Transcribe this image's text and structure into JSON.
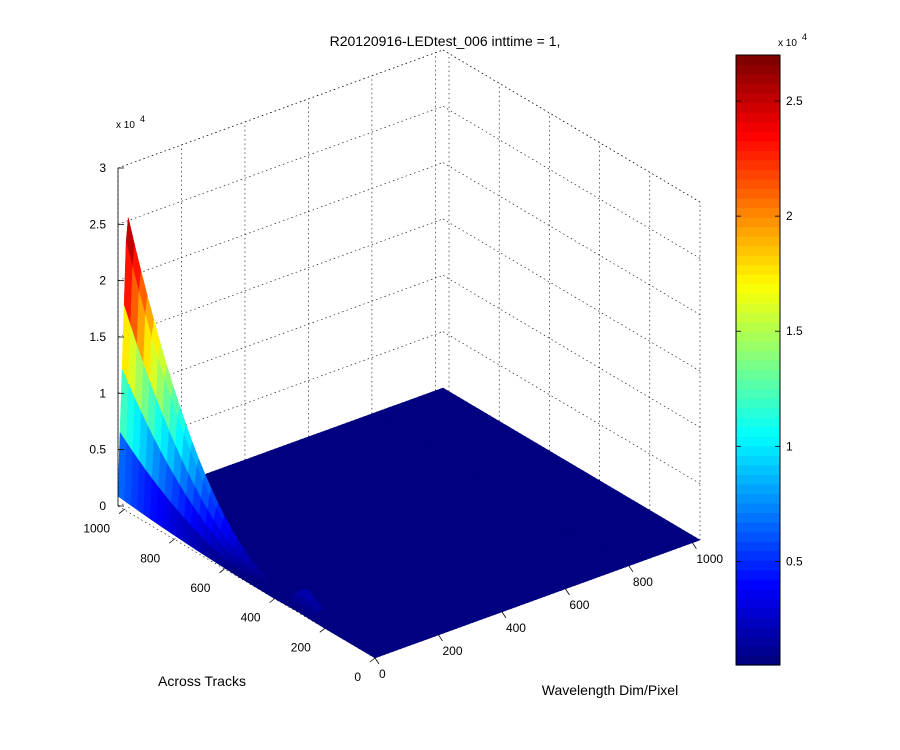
{
  "chart_data": {
    "type": "surface",
    "title": "R20120916-LEDtest_006 inttime = 1,",
    "xlabel": "Wavelength Dim/Pixel",
    "ylabel": "Across Tracks",
    "zlabel": "",
    "x_ticks": [
      "0",
      "200",
      "400",
      "600",
      "800",
      "1000"
    ],
    "y_ticks": [
      "0",
      "200",
      "400",
      "600",
      "800",
      "1000"
    ],
    "z_ticks": [
      "0",
      "0.5",
      "1",
      "1.5",
      "2",
      "2.5",
      "3"
    ],
    "z_exponent_base": "x 10",
    "z_exponent": "4",
    "xlim": [
      0,
      1024
    ],
    "ylim": [
      0,
      1024
    ],
    "zlim": [
      0,
      30000
    ],
    "grid": true,
    "colormap": "jet",
    "colorbar": {
      "ticks": [
        "0.5",
        "1",
        "1.5",
        "2",
        "2.5"
      ],
      "exponent_base": "x 10",
      "exponent": "4",
      "range": [
        500,
        27000
      ]
    },
    "surface_peak": {
      "wavelength_pixel_range": [
        0,
        60
      ],
      "across_track_pixel_range": [
        0,
        1024
      ],
      "peak_value": 27000,
      "peak_across_track": 1024,
      "baseline_value": 0
    }
  }
}
